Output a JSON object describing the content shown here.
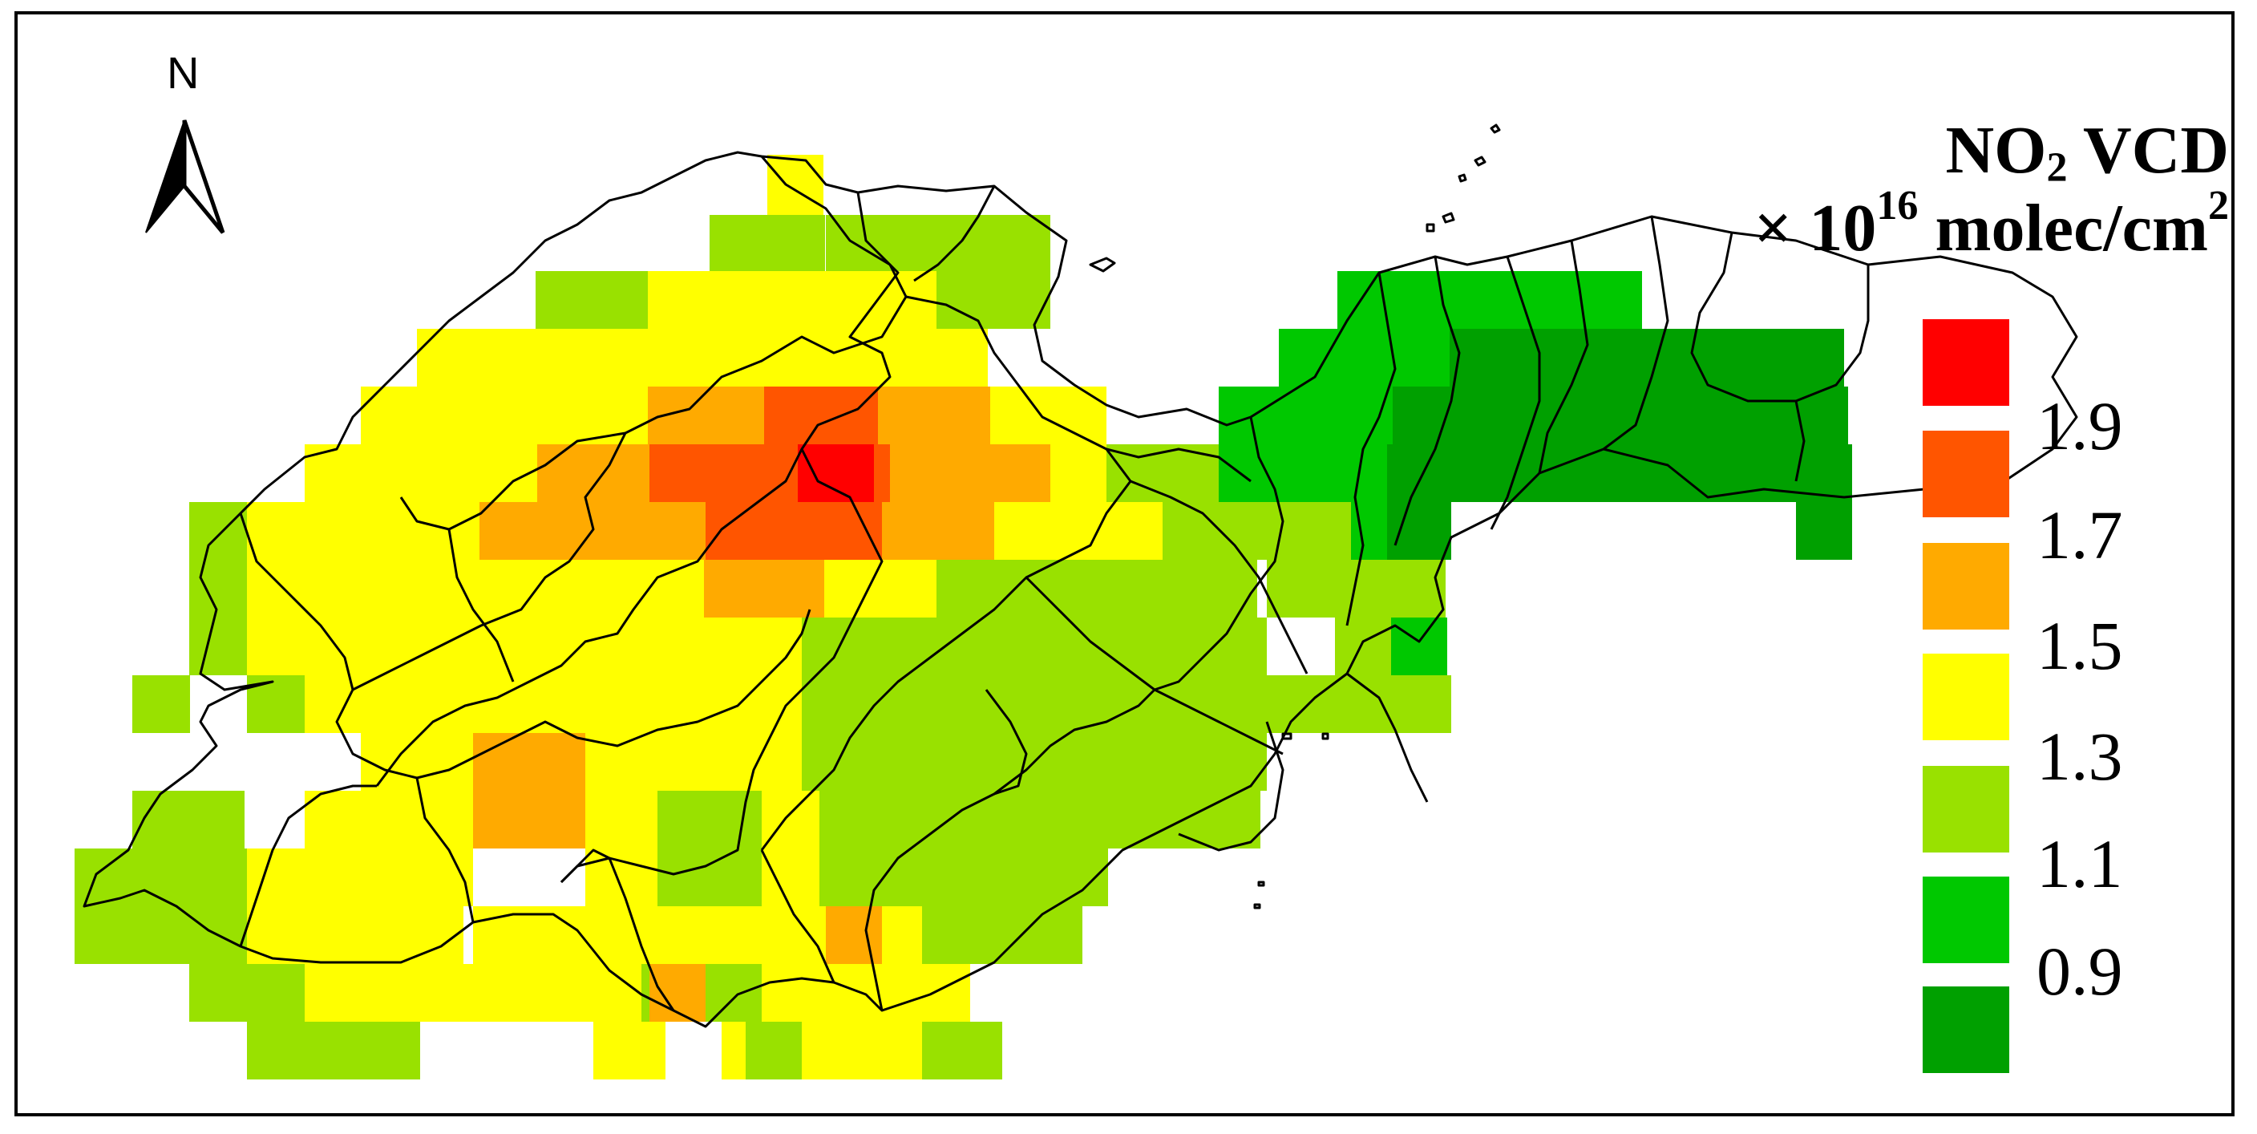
{
  "north_arrow": {
    "label": "N",
    "icon": "north-arrow-icon"
  },
  "legend": {
    "title_main": "NO",
    "title_sub": "2",
    "title_rest": " VCD",
    "units_prefix": "× 10",
    "units_exp": "16",
    "units_mid": " molec/cm",
    "units_exp2": "2",
    "colors": [
      "#ff0000",
      "#ff5500",
      "#ffaa00",
      "#ffff00",
      "#99e100",
      "#00c800",
      "#00a000"
    ],
    "labels": [
      "1.9",
      "1.7",
      "1.5",
      "1.3",
      "1.1",
      "0.9"
    ]
  }
}
